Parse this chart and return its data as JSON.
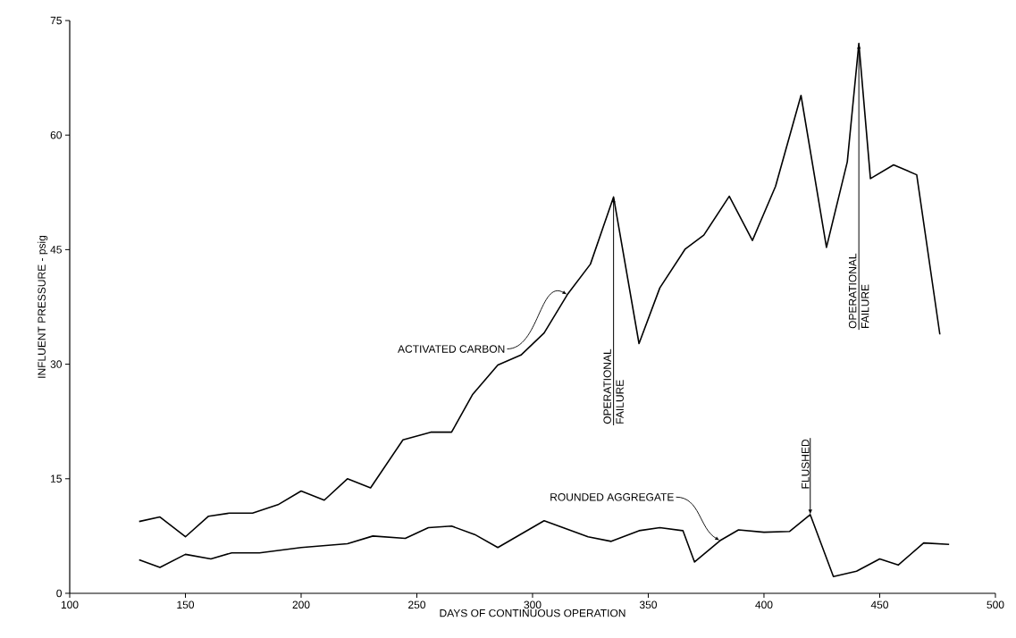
{
  "chart_data": {
    "type": "line",
    "xlabel": "DAYS OF CONTINUOUS OPERATION",
    "ylabel": "INFLUENT PRESSURE - psig",
    "xlim": [
      100,
      500
    ],
    "xticks": [
      100,
      150,
      200,
      250,
      300,
      350,
      400,
      450,
      500
    ],
    "ylim": [
      0,
      75
    ],
    "yticks": [
      0,
      15,
      30,
      45,
      60,
      75
    ],
    "marker": "none",
    "line_style": "solid",
    "series": [
      {
        "name": "ACTIVATED CARBON",
        "color": "#000000",
        "x": [
          130,
          139,
          150,
          160,
          169,
          179,
          190,
          200,
          210,
          220,
          230,
          244,
          256,
          265,
          274,
          285,
          295,
          305,
          315,
          325,
          335,
          346,
          355,
          366,
          374,
          385,
          395,
          405,
          416,
          427,
          436,
          441,
          446,
          456,
          466,
          476
        ],
        "values": [
          9.4,
          10.0,
          7.4,
          10.1,
          10.5,
          10.5,
          11.6,
          13.4,
          12.2,
          15.0,
          13.8,
          20.1,
          21.1,
          21.1,
          26.0,
          29.9,
          31.2,
          34.1,
          39.1,
          43.1,
          51.9,
          32.7,
          40.0,
          45.1,
          46.9,
          52.0,
          46.2,
          53.3,
          65.2,
          45.3,
          56.5,
          72.0,
          54.3,
          56.1,
          54.8,
          33.9
        ]
      },
      {
        "name": "ROUNDED AGGREGATE",
        "color": "#000000",
        "x": [
          130,
          139,
          150,
          161,
          170,
          182,
          200,
          220,
          231,
          245,
          255,
          265,
          275,
          285,
          305,
          324,
          334,
          346,
          355,
          365,
          370,
          381,
          389,
          400,
          411,
          420,
          430,
          440,
          450,
          458,
          469,
          480
        ],
        "values": [
          4.4,
          3.4,
          5.1,
          4.5,
          5.3,
          5.3,
          6.0,
          6.5,
          7.5,
          7.2,
          8.6,
          8.8,
          7.7,
          6.0,
          9.5,
          7.4,
          6.8,
          8.2,
          8.6,
          8.2,
          4.1,
          6.9,
          8.3,
          8.0,
          8.1,
          10.3,
          2.2,
          2.9,
          4.5,
          3.7,
          6.6,
          6.4
        ]
      }
    ],
    "annotations": [
      {
        "text": "OPERATIONAL FAILURE",
        "x": 335,
        "y": 51.9
      },
      {
        "text": "OPERATIONAL FAILURE",
        "x": 441,
        "y": 72.0
      },
      {
        "text": "FLUSHED",
        "x": 420,
        "y": 10.3
      }
    ]
  }
}
